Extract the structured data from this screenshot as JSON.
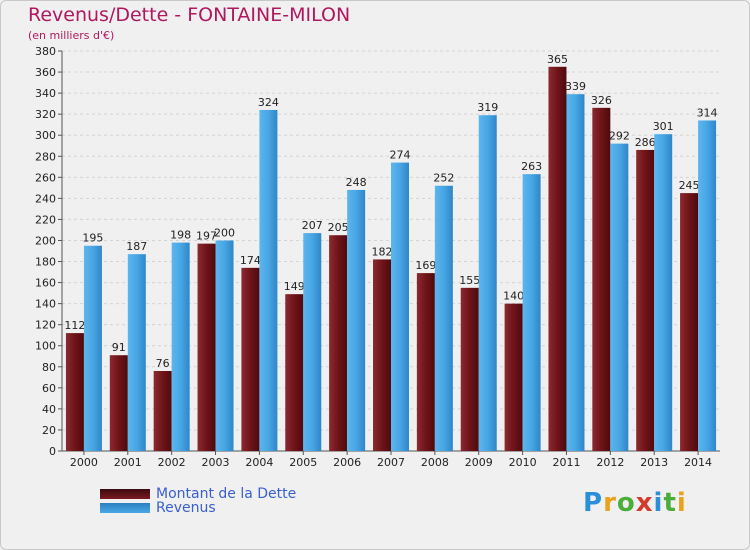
{
  "title": "Revenus/Dette - FONTAINE-MILON",
  "subtitle": "(en milliers d'€)",
  "logo": "Proxiti",
  "colors": {
    "title": "#b0175f",
    "debt": "#7a1a20",
    "revenue": "#4aa8e6",
    "legend_text": "#3a5fd0",
    "background": "#f0f0f0"
  },
  "legend": [
    {
      "label": "Montant de la Dette",
      "color": "#7a1a20"
    },
    {
      "label": "Revenus",
      "color": "#4aa8e6"
    }
  ],
  "chart_data": {
    "type": "bar",
    "title": "Revenus/Dette - FONTAINE-MILON",
    "subtitle": "(en milliers d'€)",
    "categories": [
      "2000",
      "2001",
      "2002",
      "2003",
      "2004",
      "2005",
      "2006",
      "2007",
      "2008",
      "2009",
      "2010",
      "2011",
      "2012",
      "2013",
      "2014"
    ],
    "series": [
      {
        "name": "Montant de la Dette",
        "values": [
          112,
          91,
          76,
          197,
          174,
          149,
          205,
          182,
          169,
          155,
          140,
          365,
          326,
          286,
          245
        ]
      },
      {
        "name": "Revenus",
        "values": [
          195,
          187,
          198,
          200,
          324,
          207,
          248,
          274,
          252,
          319,
          263,
          339,
          292,
          301,
          314
        ]
      }
    ],
    "ylim": [
      0,
      380
    ],
    "yticks": [
      0,
      20,
      40,
      60,
      80,
      100,
      120,
      140,
      160,
      180,
      200,
      220,
      240,
      260,
      280,
      300,
      320,
      340,
      360,
      380
    ],
    "grid": true,
    "legend_position": "bottom-left"
  }
}
